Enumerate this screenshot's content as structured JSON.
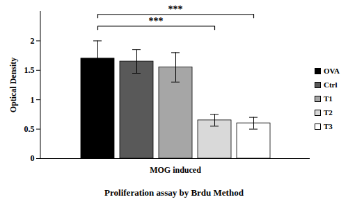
{
  "chart_data": {
    "type": "bar",
    "categories": [
      "MOG induced"
    ],
    "series": [
      {
        "name": "OVA",
        "color": "#000000",
        "values": [
          1.7
        ],
        "errors": [
          0.3
        ]
      },
      {
        "name": "Ctrl",
        "color": "#595959",
        "values": [
          1.65
        ],
        "errors": [
          0.2
        ]
      },
      {
        "name": "T1",
        "color": "#a6a6a6",
        "values": [
          1.55
        ],
        "errors": [
          0.25
        ]
      },
      {
        "name": "T2",
        "color": "#d9d9d9",
        "values": [
          0.65
        ],
        "errors": [
          0.1
        ]
      },
      {
        "name": "T3",
        "color": "#ffffff",
        "values": [
          0.6
        ],
        "errors": [
          0.1
        ]
      }
    ],
    "ylabel": "Optical Density",
    "xlabel": "Proliferation assay by Brdu Method",
    "ylim": [
      0,
      2.5
    ],
    "yticks": [
      0,
      0.5,
      1,
      1.5,
      2
    ],
    "legend": "right",
    "annotations": [
      {
        "from": "OVA",
        "to": "T3",
        "y": 2.45,
        "label": "***"
      },
      {
        "from": "OVA",
        "to": "T2",
        "y": 2.25,
        "label": "***"
      }
    ]
  }
}
